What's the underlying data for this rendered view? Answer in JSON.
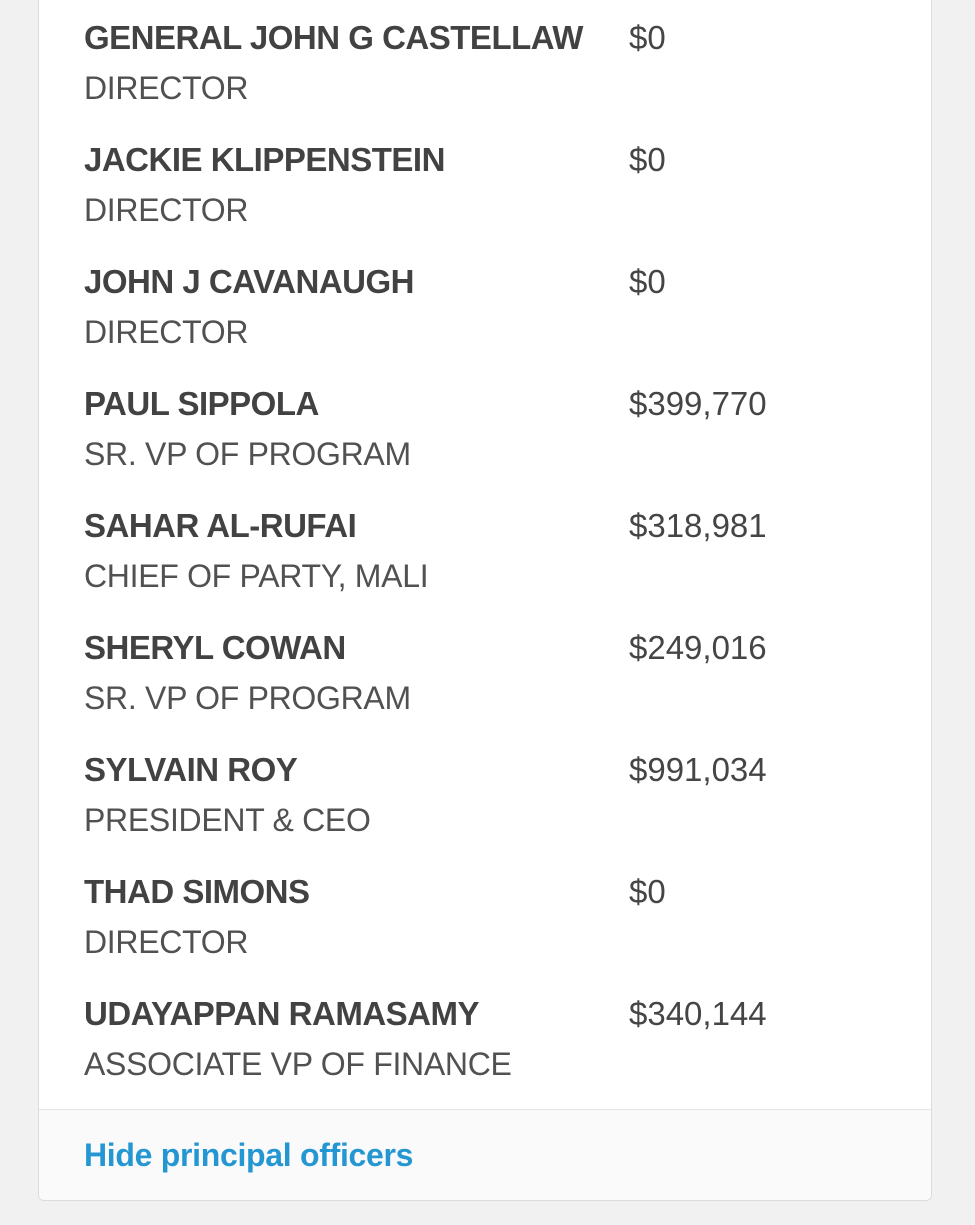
{
  "page": {
    "background_color": "#f1f1f2"
  },
  "card": {
    "background_color": "#ffffff",
    "border_color": "#dcdcdc",
    "footer_background_color": "#fafafa"
  },
  "officers": [
    {
      "name": "GENERAL JOHN G CASTELLAW",
      "title": "DIRECTOR",
      "compensation": "$0"
    },
    {
      "name": "JACKIE KLIPPENSTEIN",
      "title": "DIRECTOR",
      "compensation": "$0"
    },
    {
      "name": "JOHN J CAVANAUGH",
      "title": "DIRECTOR",
      "compensation": "$0"
    },
    {
      "name": "PAUL SIPPOLA",
      "title": "SR. VP OF PROGRAM",
      "compensation": "$399,770"
    },
    {
      "name": "SAHAR AL-RUFAI",
      "title": "CHIEF OF PARTY, MALI",
      "compensation": "$318,981"
    },
    {
      "name": "SHERYL COWAN",
      "title": "SR. VP OF PROGRAM",
      "compensation": "$249,016"
    },
    {
      "name": "SYLVAIN ROY",
      "title": "PRESIDENT & CEO",
      "compensation": "$991,034"
    },
    {
      "name": "THAD SIMONS",
      "title": "DIRECTOR",
      "compensation": "$0"
    },
    {
      "name": "UDAYAPPAN RAMASAMY",
      "title": "ASSOCIATE VP OF FINANCE",
      "compensation": "$340,144"
    }
  ],
  "footer": {
    "toggle_label": "Hide principal officers",
    "link_color": "#2497d3"
  }
}
